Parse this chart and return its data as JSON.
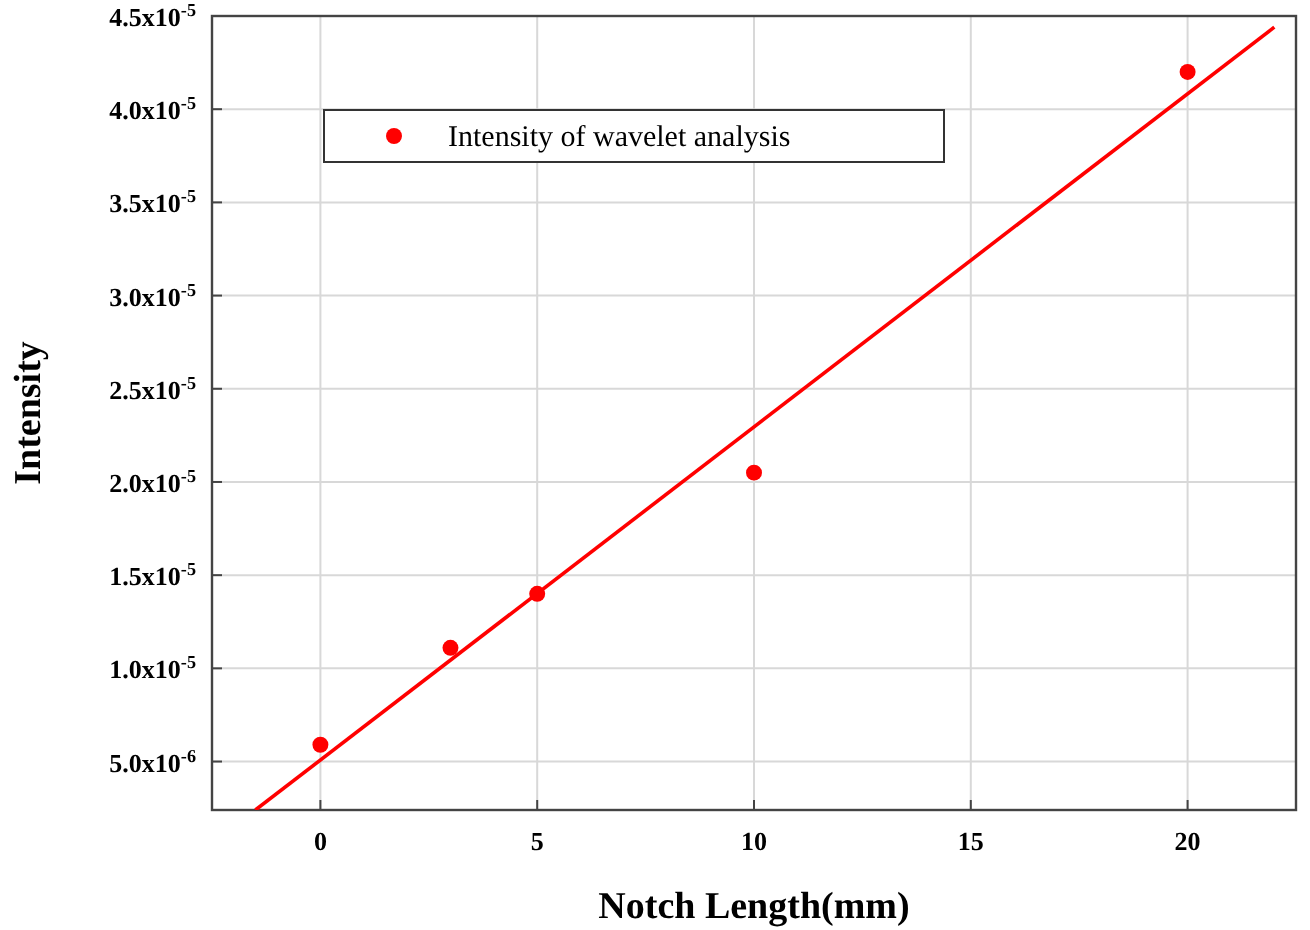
{
  "chart_data": {
    "type": "scatter",
    "xlabel": "Notch Length(mm)",
    "ylabel": "Intensity",
    "xlim": [
      -2.5,
      22.5
    ],
    "xticks": [
      0,
      5,
      10,
      15,
      20
    ],
    "ylim": [
      2.4e-06,
      4.5e-05
    ],
    "yticks": [
      {
        "value": 5e-06,
        "label": "5.0x10$^{-6}$"
      },
      {
        "value": 1e-05,
        "label": "1.0x10$^{-5}$"
      },
      {
        "value": 1.5e-05,
        "label": "1.5x10$^{-5}$"
      },
      {
        "value": 2e-05,
        "label": "2.0x10$^{-5}$"
      },
      {
        "value": 2.5e-05,
        "label": "2.5x10$^{-5}$"
      },
      {
        "value": 3e-05,
        "label": "3.0x10$^{-5}$"
      },
      {
        "value": 3.5e-05,
        "label": "3.5x10$^{-5}$"
      },
      {
        "value": 4e-05,
        "label": "4.0x10$^{-5}$"
      },
      {
        "value": 4.5e-05,
        "label": "4.5x10$^{-5}$"
      }
    ],
    "grid": true,
    "legend": "top left",
    "x": [
      0,
      3,
      5,
      10,
      20
    ],
    "series": [
      {
        "name": "Intensity of wavelet analysis",
        "color": "#ff0000",
        "marker": "circle",
        "values": [
          5.9e-06,
          1.11e-05,
          1.4e-05,
          2.05e-05,
          4.2e-05
        ]
      },
      {
        "type": "line",
        "color": "#ff0000",
        "x": [
          -1.5,
          22
        ],
        "values": [
          2.4e-06,
          4.44e-05
        ]
      }
    ]
  }
}
